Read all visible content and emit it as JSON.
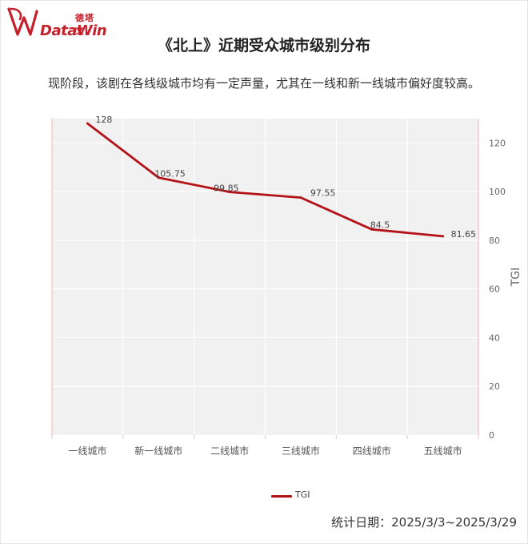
{
  "brand": {
    "name_cn": "德塔文",
    "name_en": "DataWin",
    "color": "#c51f2a"
  },
  "title": "《北上》近期受众城市级别分布",
  "subtitle": "现阶段，该剧在各线级城市均有一定声量，尤其在一线和新一线城市偏好度较高。",
  "footer": "统计日期：2025/3/3~2025/3/29",
  "chart_data": {
    "type": "line",
    "categories": [
      "一线城市",
      "新一线城市",
      "二线城市",
      "三线城市",
      "四线城市",
      "五线城市"
    ],
    "series": [
      {
        "name": "TGI",
        "values": [
          128,
          105.75,
          99.85,
          97.55,
          84.5,
          81.65
        ],
        "color": "#b31217"
      }
    ],
    "data_labels": [
      "128",
      "105.75",
      "99.85",
      "97.55",
      "84.5",
      "81.65"
    ],
    "ylabel": "TGI",
    "y_axis_position": "right",
    "ylim": [
      0,
      130
    ],
    "yticks": [
      0,
      20,
      40,
      60,
      80,
      100,
      120
    ],
    "grid": true,
    "plot_background": "#f1f1f1",
    "legend": "bottom-center"
  }
}
